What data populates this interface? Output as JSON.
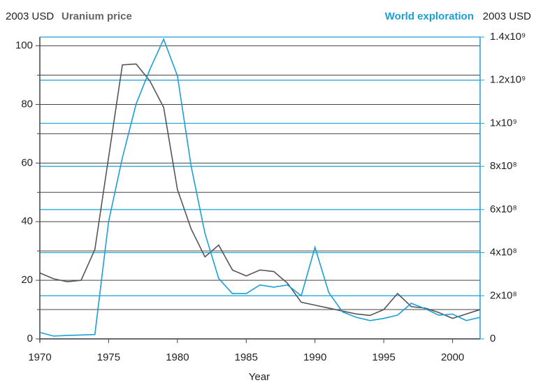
{
  "chart_data": {
    "type": "line",
    "left_axis_unit": "2003 USD",
    "left_axis_title": "Uranium price",
    "right_axis_title": "World exploration",
    "right_axis_unit": "2003 USD",
    "x_label": "Year",
    "x": [
      1970,
      1971,
      1972,
      1973,
      1974,
      1975,
      1976,
      1977,
      1978,
      1979,
      1980,
      1981,
      1982,
      1983,
      1984,
      1985,
      1986,
      1987,
      1988,
      1989,
      1990,
      1991,
      1992,
      1993,
      1994,
      1995,
      1996,
      1997,
      1998,
      1999,
      2000,
      2001,
      2002
    ],
    "xlim": [
      1970,
      2002
    ],
    "xticks": [
      1970,
      1975,
      1980,
      1985,
      1990,
      1995,
      2000
    ],
    "ylim": [
      0,
      103
    ],
    "yticks": [
      0,
      20,
      40,
      60,
      80,
      100
    ],
    "y_minor_ticks": [
      10,
      30,
      50,
      70,
      90
    ],
    "y2lim": [
      0,
      1400000000
    ],
    "y2ticks": [
      0,
      {
        "value": 200000000,
        "label": "2x10⁸"
      },
      {
        "value": 400000000,
        "label": "4x10⁸"
      },
      {
        "value": 600000000,
        "label": "6x10⁸"
      },
      {
        "value": 800000000,
        "label": "8x10⁸"
      },
      {
        "value": 1000000000,
        "label": "1x10⁹"
      },
      {
        "value": 1200000000,
        "label": "1.2x10⁹"
      },
      {
        "value": 1400000000,
        "label": "1.4x10⁹"
      }
    ],
    "grid": true,
    "series": [
      {
        "name": "Uranium price",
        "color": "#555555",
        "axis": "y",
        "values": [
          22.5,
          20.5,
          19.5,
          20,
          30.5,
          62,
          93.5,
          93.8,
          88,
          79,
          51,
          37.5,
          28,
          32,
          23.5,
          21.5,
          23.5,
          23,
          19,
          12.5,
          11.5,
          10.5,
          9.5,
          8.5,
          8,
          10,
          15.5,
          11,
          10.5,
          9,
          7,
          8.5,
          10
        ]
      },
      {
        "name": "World exploration",
        "color": "#1a9fd6",
        "axis": "y2",
        "values": [
          30000000,
          13000000,
          16000000,
          18000000,
          20000000,
          545000000,
          840000000,
          1090000000,
          1250000000,
          1390000000,
          1220000000,
          800000000,
          490000000,
          280000000,
          210000000,
          210000000,
          250000000,
          240000000,
          250000000,
          200000000,
          425000000,
          215000000,
          125000000,
          100000000,
          85000000,
          95000000,
          110000000,
          165000000,
          140000000,
          110000000,
          115000000,
          85000000,
          100000000
        ]
      }
    ]
  }
}
